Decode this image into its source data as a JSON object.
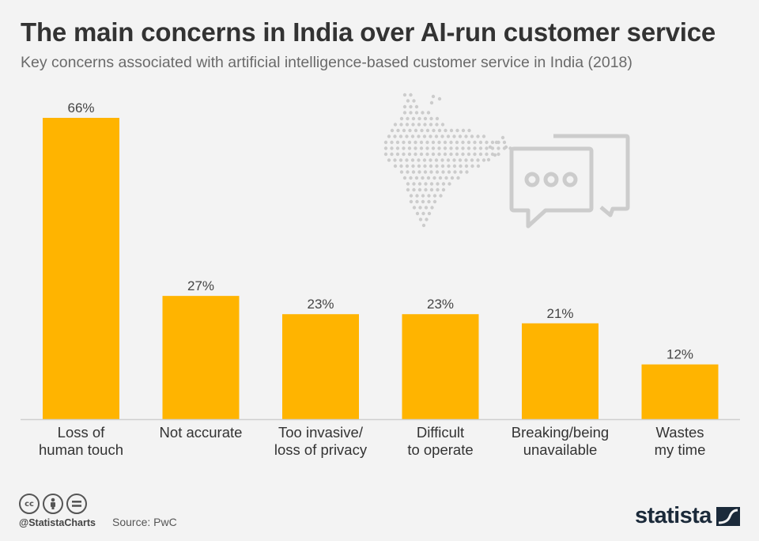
{
  "header": {
    "title": "The main concerns in India over AI-run customer service",
    "subtitle": "Key concerns associated with artificial intelligence-based customer service in India (2018)"
  },
  "chart_data": {
    "type": "bar",
    "categories": [
      [
        "Loss of",
        "human touch"
      ],
      [
        "Not accurate"
      ],
      [
        "Too invasive/",
        "loss of privacy"
      ],
      [
        "Difficult",
        "to operate"
      ],
      [
        "Breaking/being",
        "unavailable"
      ],
      [
        "Wastes",
        "my time"
      ]
    ],
    "values": [
      66,
      27,
      23,
      23,
      21,
      12
    ],
    "value_labels": [
      "66%",
      "27%",
      "23%",
      "23%",
      "21%",
      "12%"
    ],
    "unit": "%",
    "ylim": [
      0,
      66
    ],
    "grid": false,
    "bar_color": "#FFB400"
  },
  "footer": {
    "handle": "@StatistaCharts",
    "source": "Source: PwC",
    "brand": "statista",
    "license_icons": [
      "cc-icon",
      "attribution-icon",
      "no-derivatives-icon"
    ]
  },
  "colors": {
    "background": "#f3f3f3",
    "title": "#333333",
    "subtitle": "#6a6a6a",
    "bar": "#FFB400",
    "axis": "#cfcfcf",
    "decor": "#cccccc",
    "brand": "#1b2a3a"
  }
}
